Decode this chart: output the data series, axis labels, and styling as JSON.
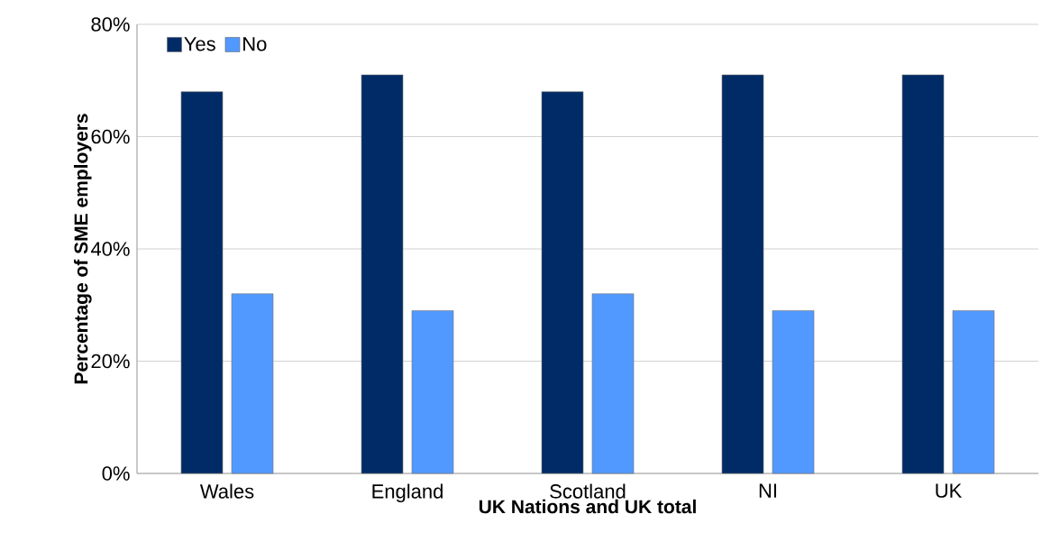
{
  "chart_data": {
    "type": "bar",
    "xlabel": "UK Nations and UK total",
    "ylabel": "Percentage of SME employers",
    "categories": [
      "Wales",
      "England",
      "Scotland",
      "NI",
      "UK"
    ],
    "series": [
      {
        "name": "Yes",
        "color": "#002b66",
        "values": [
          68,
          71,
          68,
          71,
          71
        ]
      },
      {
        "name": "No",
        "color": "#5299ff",
        "values": [
          32,
          29,
          32,
          29,
          29
        ]
      }
    ],
    "ylim": [
      0,
      80
    ],
    "yticks": [
      {
        "value": 0,
        "label": "0%"
      },
      {
        "value": 20,
        "label": "20%"
      },
      {
        "value": 40,
        "label": "40%"
      },
      {
        "value": 60,
        "label": "60%"
      },
      {
        "value": 80,
        "label": "80%"
      }
    ],
    "grid": "y",
    "legend": "top left"
  }
}
